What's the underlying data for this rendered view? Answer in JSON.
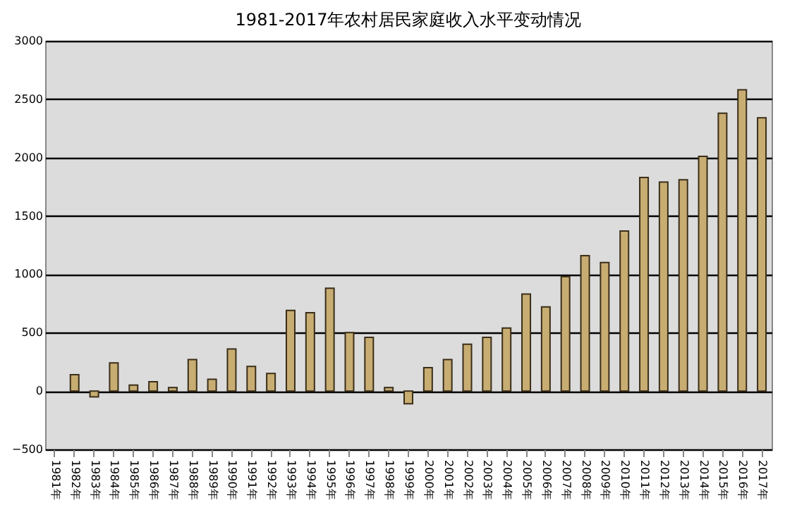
{
  "chart_data": {
    "type": "bar",
    "title": "1981-2017年农村居民家庭收入水平变动情况",
    "categories": [
      "1981年",
      "1982年",
      "1983年",
      "1984年",
      "1985年",
      "1986年",
      "1987年",
      "1988年",
      "1989年",
      "1990年",
      "1991年",
      "1992年",
      "1993年",
      "1994年",
      "1995年",
      "1996年",
      "1997年",
      "1998年",
      "1999年",
      "2000年",
      "2001年",
      "2002年",
      "2003年",
      "2004年",
      "2005年",
      "2006年",
      "2007年",
      "2008年",
      "2009年",
      "2010年",
      "2011年",
      "2012年",
      "2013年",
      "2014年",
      "2015年",
      "2016年",
      "2017年"
    ],
    "values": [
      null,
      140,
      -50,
      240,
      50,
      80,
      30,
      270,
      100,
      360,
      210,
      150,
      690,
      670,
      880,
      500,
      460,
      30,
      -110,
      200,
      270,
      400,
      460,
      540,
      830,
      720,
      980,
      1160,
      1100,
      1370,
      1830,
      1790,
      1810,
      2010,
      2380,
      2580,
      2340
    ],
    "color": "#c8ad72",
    "ylim": [
      -500,
      3000
    ],
    "yticks": [
      -500,
      0,
      500,
      1000,
      1500,
      2000,
      2500,
      3000
    ],
    "grid": "y"
  }
}
